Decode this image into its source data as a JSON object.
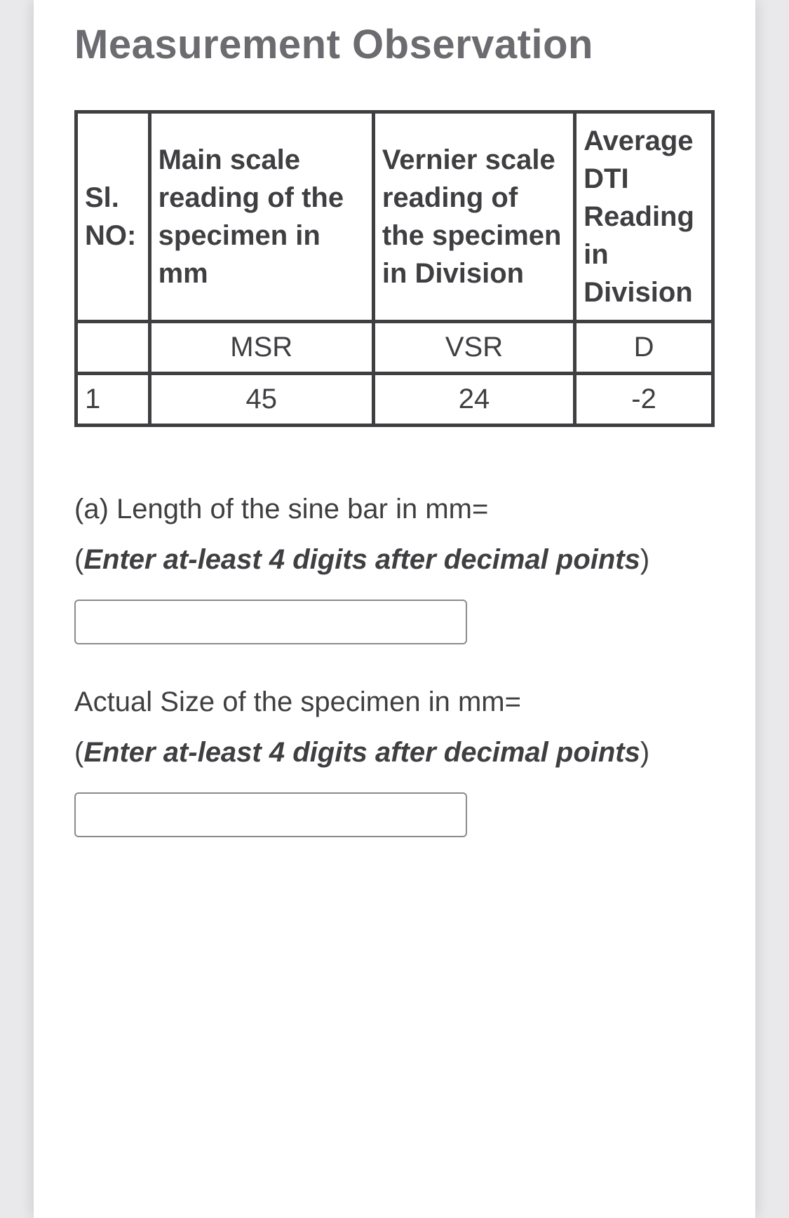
{
  "title": "Measurement Observation",
  "table": {
    "headers": {
      "sl": "Sl. NO:",
      "msr": "Main scale reading  of the specimen in mm",
      "vsr": "Vernier scale reading  of the specimen in Division",
      "d": "Average DTI Reading in Division"
    },
    "subheaders": {
      "sl": "",
      "msr": "MSR",
      "vsr": "VSR",
      "d": "D"
    },
    "rows": [
      {
        "sl": "1",
        "msr": "45",
        "vsr": "24",
        "d": "-2"
      }
    ],
    "border_color": "#3f3f42",
    "text_color": "#3f3f42",
    "font_size": 40
  },
  "questions": {
    "a": {
      "prompt": "(a) Length of the sine bar in mm=",
      "hint_prefix": "(",
      "hint_italic": "Enter at-least 4 digits after decimal points",
      "hint_suffix": ")",
      "value": ""
    },
    "b": {
      "prompt": "Actual Size of the specimen in mm=",
      "hint_prefix": "(",
      "hint_italic": "Enter  at-least 4 digits after decimal points",
      "hint_suffix": ")",
      "value": ""
    }
  },
  "colors": {
    "page_bg": "#e9e9ec",
    "card_bg": "#ffffff",
    "title_color": "#6b6b70",
    "text_color": "#3f3f42",
    "input_border": "#8a8a8f"
  }
}
